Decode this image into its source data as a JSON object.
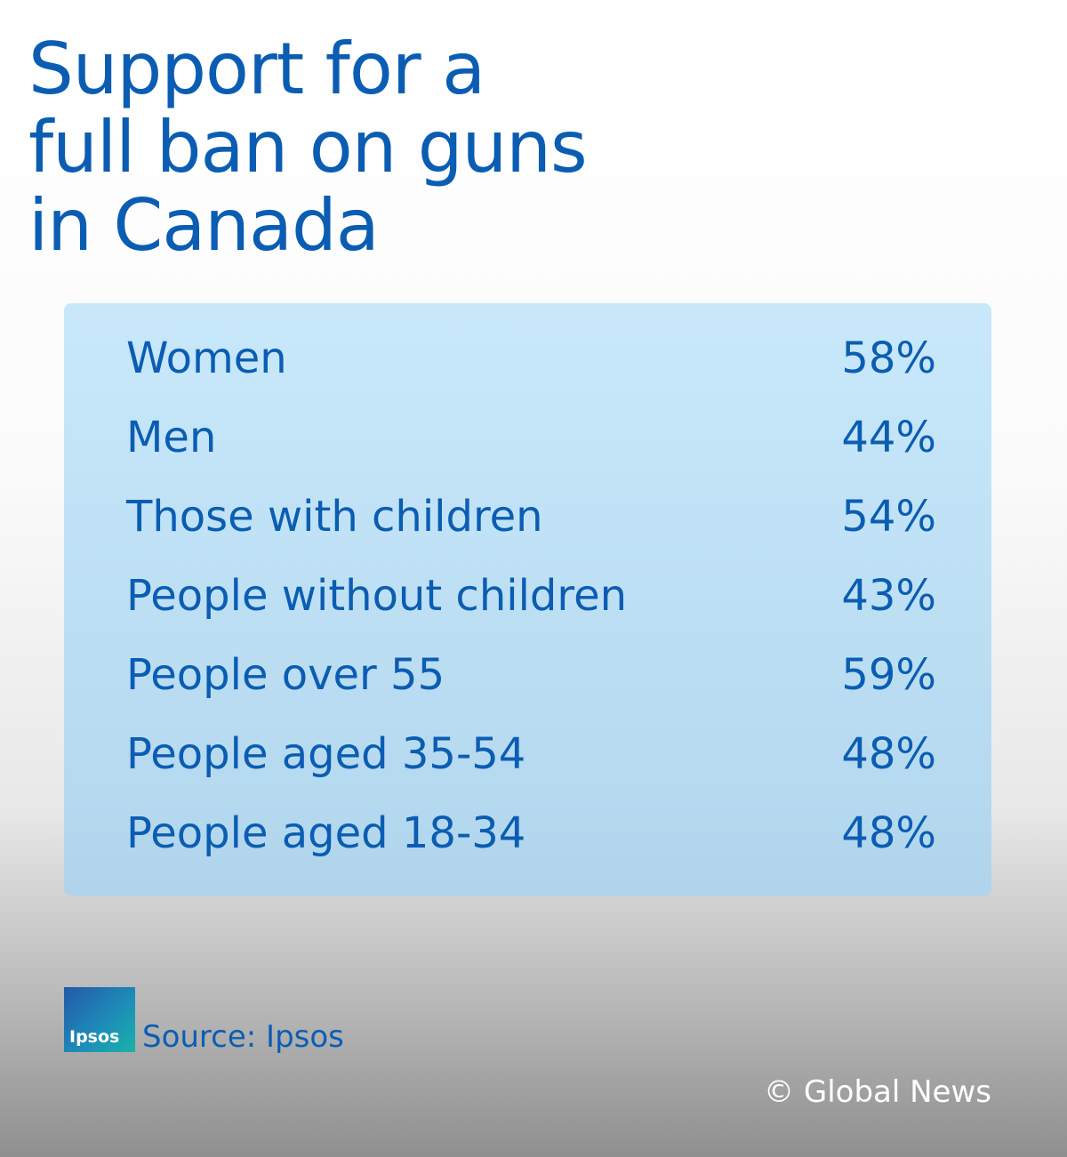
{
  "header": {
    "title_lines": [
      "Support for a",
      "full ban on guns",
      "in Canada"
    ]
  },
  "table": {
    "rows": [
      [
        "Women",
        "58%"
      ],
      [
        "Men",
        "44%"
      ],
      [
        "Those with children",
        "54%"
      ],
      [
        "People without children",
        "43%"
      ],
      [
        "People over 55",
        "59%"
      ],
      [
        "People aged 35-54",
        "48%"
      ],
      [
        "People aged 18-34",
        "48%"
      ]
    ]
  },
  "footer": {
    "logo": "Ipsos",
    "source": "Source: Ipsos",
    "credit": "© Global News"
  }
}
